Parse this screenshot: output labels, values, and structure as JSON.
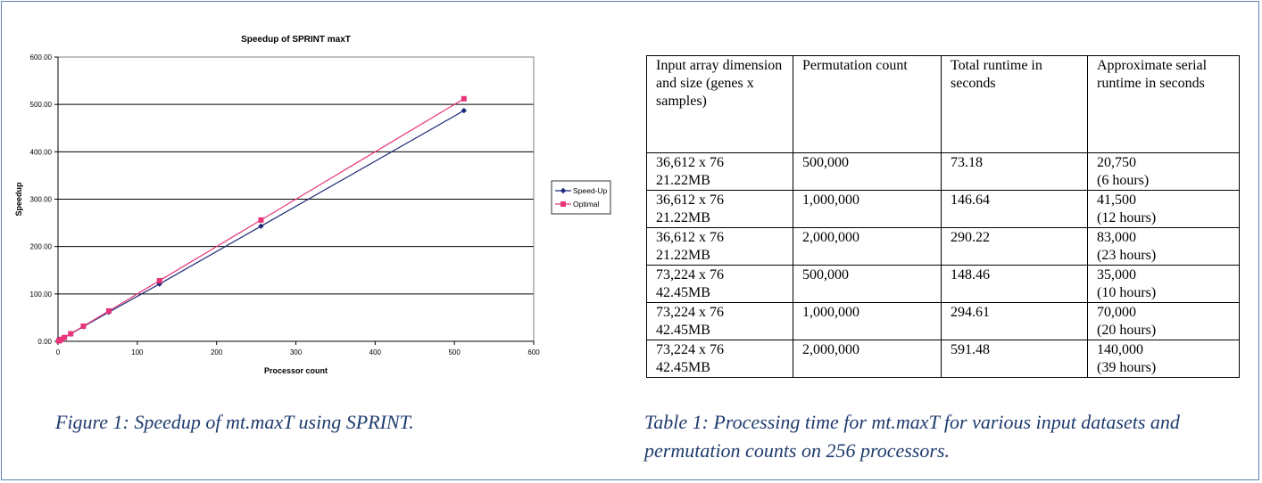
{
  "chart_data": {
    "type": "line",
    "title": "Speedup of SPRINT maxT",
    "xlabel": "Processor count",
    "ylabel": "Speedup",
    "xlim": [
      0,
      600
    ],
    "ylim": [
      0,
      600
    ],
    "x_ticks": [
      "0",
      "100",
      "200",
      "300",
      "400",
      "500",
      "600"
    ],
    "y_ticks": [
      "0.00",
      "100.00",
      "200.00",
      "300.00",
      "400.00",
      "500.00",
      "600.00"
    ],
    "grid": "horizontal",
    "legend_position": "right",
    "series": [
      {
        "name": "Speed-Up",
        "color": "#1f2a7a",
        "marker": "diamond",
        "x": [
          1,
          2,
          4,
          8,
          16,
          32,
          64,
          128,
          256,
          512
        ],
        "y": [
          1,
          2,
          4,
          7.9,
          15.6,
          31,
          61.5,
          121,
          243,
          487
        ]
      },
      {
        "name": "Optimal",
        "color": "#e8357a",
        "marker": "square",
        "x": [
          1,
          2,
          4,
          8,
          16,
          32,
          64,
          128,
          256,
          512
        ],
        "y": [
          1,
          2,
          4,
          8,
          16,
          32,
          64,
          128,
          256,
          512
        ]
      }
    ]
  },
  "figure_caption": "Figure 1: Speedup of mt.maxT using SPRINT.",
  "table": {
    "headers": [
      "Input array dimension and size (genes x samples)",
      "Permutation count",
      "Total runtime in seconds",
      "Approximate serial runtime in seconds"
    ],
    "rows": [
      {
        "dimension": "36,612 x 76",
        "size": "21.22MB",
        "permutations": "500,000",
        "runtime": "73.18",
        "serial": "20,750",
        "serial_hours": "(6 hours)"
      },
      {
        "dimension": "36,612 x 76",
        "size": "21.22MB",
        "permutations": "1,000,000",
        "runtime": "146.64",
        "serial": "41,500",
        "serial_hours": "(12 hours)"
      },
      {
        "dimension": "36,612 x 76",
        "size": "21.22MB",
        "permutations": "2,000,000",
        "runtime": "290.22",
        "serial": "83,000",
        "serial_hours": "(23 hours)"
      },
      {
        "dimension": "73,224 x 76",
        "size": "42.45MB",
        "permutations": "500,000",
        "runtime": "148.46",
        "serial": "35,000",
        "serial_hours": "(10 hours)"
      },
      {
        "dimension": "73,224 x 76",
        "size": "42.45MB",
        "permutations": "1,000,000",
        "runtime": "294.61",
        "serial": "70,000",
        "serial_hours": "(20 hours)"
      },
      {
        "dimension": "73,224 x 76",
        "size": "42.45MB",
        "permutations": "2,000,000",
        "runtime": "591.48",
        "serial": "140,000",
        "serial_hours": "(39 hours)"
      }
    ]
  },
  "table_caption": "Table 1: Processing time for mt.maxT for various input datasets and permutation counts on 256 processors."
}
